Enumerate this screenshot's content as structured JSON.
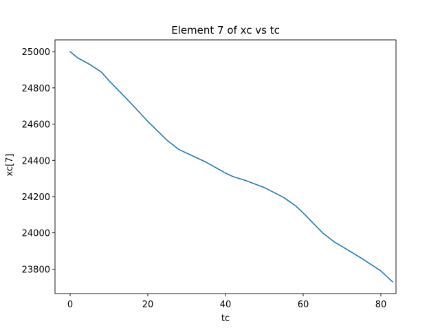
{
  "chart_data": {
    "type": "line",
    "title": "Element 7 of xc vs tc",
    "xlabel": "tc",
    "ylabel": "xc[7]",
    "xlim": [
      -3.9,
      83.9
    ],
    "ylim": [
      23665,
      25065
    ],
    "xticks": [
      0,
      20,
      40,
      60,
      80
    ],
    "yticks": [
      23800,
      24000,
      24200,
      24400,
      24600,
      24800,
      25000
    ],
    "grid": false,
    "series": [
      {
        "color": "#1f77b4",
        "x": [
          0,
          2,
          5,
          8,
          10,
          15,
          20,
          25,
          28,
          30,
          35,
          40,
          42,
          45,
          50,
          55,
          58,
          60,
          65,
          68,
          70,
          75,
          80,
          83
        ],
        "y": [
          25000,
          24965,
          24930,
          24888,
          24840,
          24730,
          24615,
          24510,
          24460,
          24440,
          24390,
          24330,
          24310,
          24290,
          24250,
          24195,
          24150,
          24110,
          24000,
          23950,
          23925,
          23860,
          23790,
          23730
        ]
      }
    ]
  }
}
